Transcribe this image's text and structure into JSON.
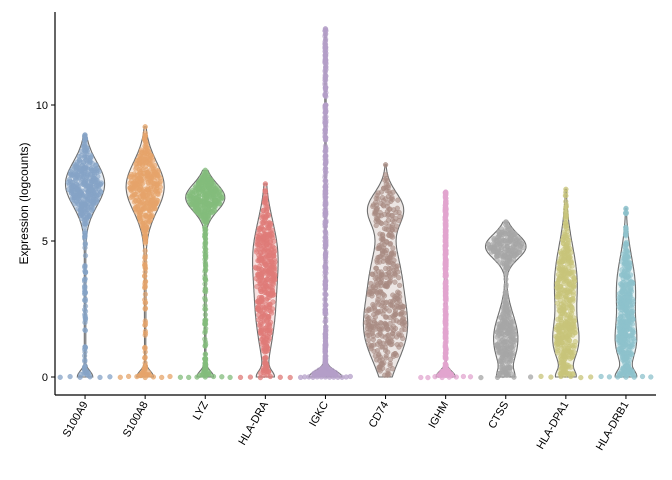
{
  "chart_data": {
    "type": "violin",
    "title": "",
    "xlabel": "",
    "ylabel": "Expression (logcounts)",
    "ylim": [
      -0.6,
      13.4
    ],
    "yticks": [
      0,
      5,
      10
    ],
    "grid": false,
    "legend": "none",
    "categories": [
      "S100A9",
      "S100A8",
      "LYZ",
      "HLA-DRA",
      "IGKC",
      "CD74",
      "IGHM",
      "CTSS",
      "HLA-DPA1",
      "HLA-DRB1"
    ],
    "series": [
      {
        "category": "S100A9",
        "color": "#86a3c7",
        "max": 8.9,
        "zero_peak": 0.28,
        "modes": [
          {
            "c": 7.1,
            "s": 0.8,
            "w": 0.72
          },
          {
            "c": 3.2,
            "s": 2.0,
            "w": 0.03
          }
        ]
      },
      {
        "category": "S100A8",
        "color": "#e6a46a",
        "max": 9.2,
        "zero_peak": 0.3,
        "modes": [
          {
            "c": 7.0,
            "s": 0.9,
            "w": 0.7
          },
          {
            "c": 3.2,
            "s": 2.0,
            "w": 0.03
          }
        ]
      },
      {
        "category": "LYZ",
        "color": "#83bc7c",
        "max": 7.6,
        "zero_peak": 0.3,
        "modes": [
          {
            "c": 6.6,
            "s": 0.5,
            "w": 0.72
          },
          {
            "c": 3.0,
            "s": 1.8,
            "w": 0.03
          }
        ]
      },
      {
        "category": "HLA-DRA",
        "color": "#df7b78",
        "max": 7.1,
        "zero_peak": 0.28,
        "modes": [
          {
            "c": 4.6,
            "s": 1.2,
            "w": 0.42
          },
          {
            "c": 2.2,
            "s": 1.2,
            "w": 0.3
          }
        ]
      },
      {
        "category": "IGKC",
        "color": "#b49fc8",
        "max": 12.8,
        "zero_peak": 0.6,
        "modes": [
          {
            "c": 6.0,
            "s": 2.5,
            "w": 0.02
          },
          {
            "c": 1.0,
            "s": 0.6,
            "w": 0.05
          }
        ]
      },
      {
        "category": "CD74",
        "color": "#a88b82",
        "max": 7.8,
        "zero_peak": 0.0,
        "modes": [
          {
            "c": 6.2,
            "s": 0.6,
            "w": 0.6
          },
          {
            "c": 1.6,
            "s": 1.1,
            "w": 0.7
          },
          {
            "c": 3.8,
            "s": 1.2,
            "w": 0.5
          }
        ]
      },
      {
        "category": "IGHM",
        "color": "#e2a5cf",
        "max": 6.8,
        "zero_peak": 0.35,
        "modes": [
          {
            "c": 4.0,
            "s": 1.8,
            "w": 0.05
          }
        ]
      },
      {
        "category": "CTSS",
        "color": "#a6a6a6",
        "max": 5.7,
        "zero_peak": 0.2,
        "modes": [
          {
            "c": 4.8,
            "s": 0.45,
            "w": 0.75
          },
          {
            "c": 1.4,
            "s": 0.9,
            "w": 0.45
          }
        ]
      },
      {
        "category": "HLA-DPA1",
        "color": "#c8c47a",
        "max": 6.9,
        "zero_peak": 0.28,
        "modes": [
          {
            "c": 3.4,
            "s": 1.4,
            "w": 0.42
          },
          {
            "c": 1.2,
            "s": 0.7,
            "w": 0.35
          }
        ]
      },
      {
        "category": "HLA-DRB1",
        "color": "#8dc2cc",
        "max": 6.2,
        "zero_peak": 0.32,
        "modes": [
          {
            "c": 3.2,
            "s": 1.2,
            "w": 0.35
          },
          {
            "c": 1.2,
            "s": 0.7,
            "w": 0.3
          }
        ]
      }
    ]
  }
}
